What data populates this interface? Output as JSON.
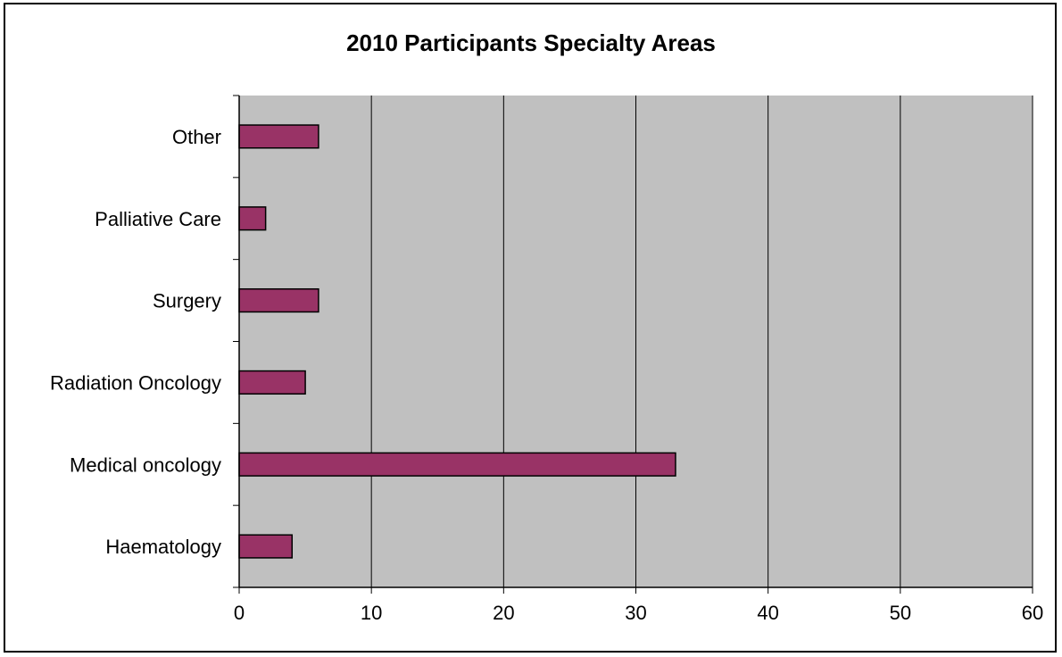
{
  "chart_data": {
    "type": "bar",
    "orientation": "horizontal",
    "title": "2010 Participants Specialty Areas",
    "categories": [
      "Haematology",
      "Medical oncology",
      "Radiation Oncology",
      "Surgery",
      "Palliative Care",
      "Other"
    ],
    "series": [
      {
        "values": [
          4,
          33,
          5,
          6,
          2,
          6
        ]
      }
    ],
    "xlim": [
      0,
      60
    ],
    "xticks": [
      0,
      10,
      20,
      30,
      40,
      50,
      60
    ],
    "xlabel": "",
    "ylabel": "",
    "grid": "vertical",
    "legend": "none",
    "colors": {
      "bar": "#993366",
      "plot_background": "#c0c0c0",
      "gridline": "#000000"
    }
  }
}
